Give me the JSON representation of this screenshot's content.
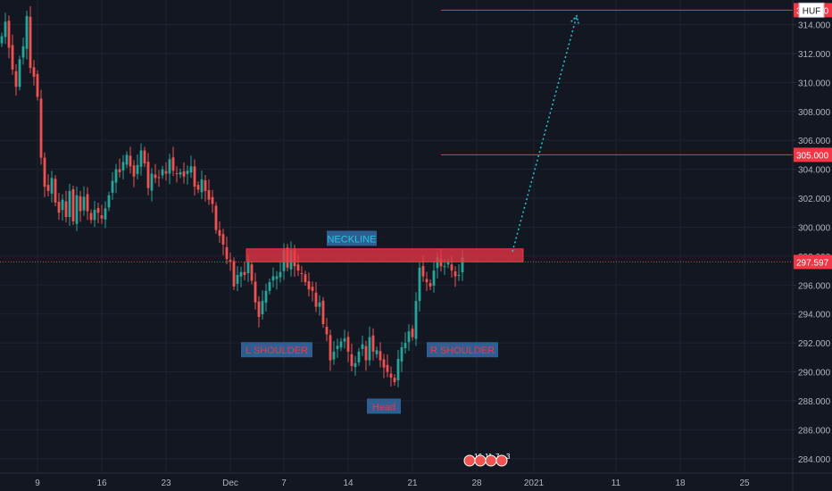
{
  "chart_data": {
    "type": "candlestick",
    "currency_badge": "HUF",
    "y_ticks": [
      "314.000",
      "312.000",
      "310.000",
      "308.000",
      "306.000",
      "304.000",
      "302.000",
      "300.000",
      "298.000",
      "296.000",
      "294.000",
      "292.000",
      "290.000",
      "288.000",
      "286.000",
      "284.000"
    ],
    "y_tick_values": [
      314,
      312,
      310,
      308,
      306,
      304,
      302,
      300,
      298,
      296,
      294,
      292,
      290,
      288,
      286,
      284
    ],
    "ylim": [
      283.0,
      315.7
    ],
    "x_ticks": [
      {
        "label": "9",
        "slot": 10
      },
      {
        "label": "16",
        "slot": 28
      },
      {
        "label": "23",
        "slot": 46
      },
      {
        "label": "Dec",
        "slot": 64
      },
      {
        "label": "7",
        "slot": 79
      },
      {
        "label": "14",
        "slot": 97
      },
      {
        "label": "21",
        "slot": 115
      },
      {
        "label": "28",
        "slot": 133
      },
      {
        "label": "2021",
        "slot": 149
      },
      {
        "label": "11",
        "slot": 172
      },
      {
        "label": "18",
        "slot": 190
      },
      {
        "label": "25",
        "slot": 208
      }
    ],
    "slot_count": 222,
    "price_levels": [
      {
        "value": 315.0,
        "label": "315.000",
        "color": "#f23645"
      },
      {
        "value": 305.0,
        "label": "305.000",
        "color": "#f23645"
      }
    ],
    "current_price": {
      "value": 297.597,
      "label": "297.597",
      "color": "#f23645"
    },
    "neckline_zone": {
      "low": 297.6,
      "high": 298.5,
      "label": "NECKLINE"
    },
    "pattern_labels": [
      {
        "text": "L SHOULDER",
        "slot": 77,
        "price": 291.5,
        "color": "#f23645",
        "bg": "#2f5e93"
      },
      {
        "text": "Head",
        "slot": 107,
        "price": 287.6,
        "color": "#f23645",
        "bg": "#2f5e93"
      },
      {
        "text": "R SHOULDER",
        "slot": 129,
        "price": 291.5,
        "color": "#f23645",
        "bg": "#2f5e93"
      }
    ],
    "projection": {
      "from": {
        "slot": 143,
        "price": 298.3
      },
      "to": {
        "slot": 161,
        "price": 314.6
      },
      "color": "#26c6da"
    },
    "events_badge": [
      "16",
      "11",
      "7",
      "3"
    ],
    "colors": {
      "up": "#26a69a",
      "down": "#ef5350",
      "grid": "#1f2330",
      "axis_text": "#b2b5be"
    },
    "close_series": [
      313.2,
      314.2,
      312.4,
      310.9,
      309.7,
      311.6,
      312.5,
      314.6,
      311.0,
      310.4,
      309.0,
      304.8,
      302.8,
      302.5,
      303.4,
      301.7,
      301.0,
      301.9,
      300.7,
      302.5,
      300.4,
      302.2,
      301.1,
      302.1,
      301.1,
      300.5,
      301.2,
      301.0,
      300.6,
      301.3,
      302.2,
      303.2,
      304.0,
      303.8,
      304.5,
      305.0,
      304.2,
      303.5,
      304.3,
      305.3,
      304.4,
      302.7,
      303.7,
      303.4,
      303.4,
      304.0,
      303.7,
      304.7,
      303.9,
      303.7,
      303.8,
      303.5,
      303.9,
      304.2,
      302.8,
      302.6,
      303.3,
      302.5,
      301.9,
      301.6,
      299.8,
      299.4,
      298.8,
      297.8,
      297.6,
      295.9,
      296.7,
      296.9,
      296.7,
      297.6,
      296.3,
      294.8,
      293.8,
      294.9,
      295.6,
      296.2,
      296.6,
      296.6,
      296.9,
      298.4,
      297.2,
      298.4,
      297.3,
      297.0,
      296.8,
      296.2,
      295.7,
      295.6,
      294.5,
      294.8,
      293.3,
      292.6,
      290.8,
      291.4,
      291.8,
      292.1,
      292.3,
      291.4,
      290.4,
      290.6,
      291.4,
      291.9,
      290.8,
      292.4,
      291.4,
      291.5,
      290.8,
      290.3,
      290.0,
      289.6,
      289.3,
      290.9,
      291.7,
      292.0,
      292.8,
      292.4,
      294.9,
      297.2,
      296.6,
      296.2,
      295.9,
      297.0,
      297.9,
      297.3,
      297.3,
      297.6,
      297.0,
      296.6,
      296.7,
      297.9
    ]
  }
}
